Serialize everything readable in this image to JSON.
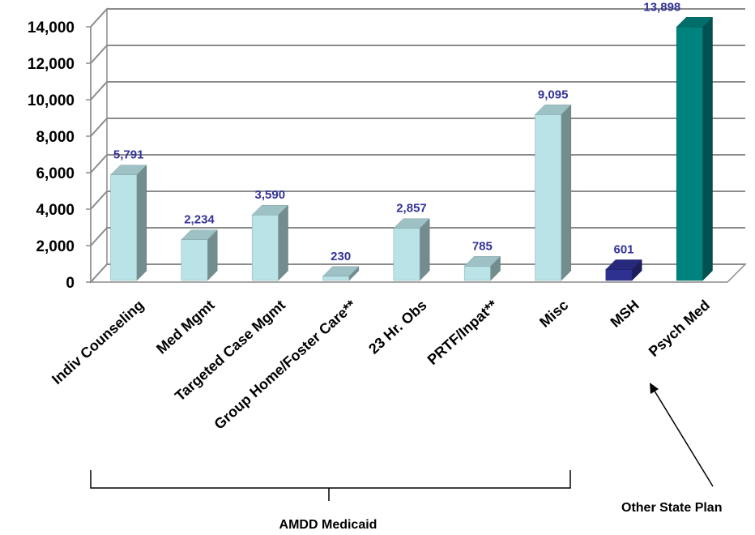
{
  "chart_data": {
    "type": "bar",
    "categories": [
      "Indiv Counseling",
      "Med Mgmt",
      "Targeted Case Mgmt",
      "Group Home/Foster Care**",
      "23 Hr. Obs",
      "PRTF/Inpat**",
      "Misc",
      "MSH",
      "Psych Med"
    ],
    "values": [
      5791,
      2234,
      3590,
      230,
      2857,
      785,
      9095,
      601,
      13898
    ],
    "data_labels": [
      "5,791",
      "2,234",
      "3,590",
      "230",
      "2,857",
      "785",
      "9,095",
      "601",
      "13,898"
    ],
    "bar_colors": [
      "#b9e3e6",
      "#b9e3e6",
      "#b9e3e6",
      "#b9e3e6",
      "#b9e3e6",
      "#b9e3e6",
      "#b9e3e6",
      "#2e3192",
      "#00827f"
    ],
    "ylim": [
      0,
      14000
    ],
    "yticks": [
      0,
      2000,
      4000,
      6000,
      8000,
      10000,
      12000,
      14000
    ],
    "ytick_labels": [
      "0",
      "2,000",
      "4,000",
      "6,000",
      "8,000",
      "10,000",
      "12,000",
      "14,000"
    ],
    "grid": true,
    "style": "3d-column",
    "groups": [
      {
        "label": "AMDD Medicaid",
        "annotation": "bracket",
        "from": 0,
        "to": 6
      },
      {
        "label": "Other State Plan",
        "annotation": "arrow",
        "target": 8
      }
    ],
    "data_label_color": "#333399"
  }
}
